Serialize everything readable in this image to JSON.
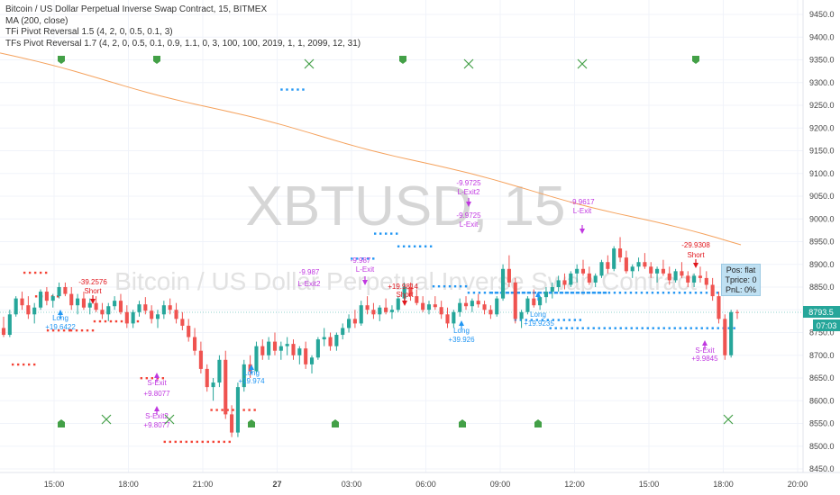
{
  "legend": {
    "title": "Bitcoin / US Dollar Perpetual Inverse Swap Contract, 15, BITMEX",
    "ma": "MA (200, close)",
    "ind1": "TFi Pivot Reversal 1.5 (4, 2, 0, 0.5, 0.1, 3)",
    "ind2": "TFs Pivot Reversal 1.7 (4, 2, 0, 0.5, 0.1, 0.9, 1.1, 0, 3, 100, 100, 2019, 1, 1, 2099, 12, 31)"
  },
  "watermark": {
    "symbol": "XBTUSD, 15",
    "description": "Bitcoin / US Dollar Perpetual Inverse Swap Contract"
  },
  "position_box": {
    "pos": "Pos: flat",
    "tprice": "Tprice: 0",
    "pnl": "PnL: 0%"
  },
  "price_tags": {
    "last": "8793.5",
    "countdown": "07:03"
  },
  "colors": {
    "up": "#26a69a",
    "down": "#ef5350",
    "ma": "#f5a25d",
    "resistance": "#2196f3",
    "support": "#f44336",
    "exit": "#c038e0",
    "short": "#e0151c",
    "long": "#2196f3",
    "bull_marker": "#43a047"
  },
  "chart_data": {
    "type": "candlestick",
    "y_axis": {
      "min": 8450,
      "max": 9450,
      "ticks": [
        "9450.0",
        "9400.0",
        "9350.0",
        "9300.0",
        "9250.0",
        "9200.0",
        "9150.0",
        "9100.0",
        "9050.0",
        "9000.0",
        "8950.0",
        "8900.0",
        "8850.0",
        "8800.0",
        "8750.0",
        "8700.0",
        "8650.0",
        "8600.0",
        "8550.0",
        "8500.0",
        "8450.0"
      ]
    },
    "x_axis": {
      "ticks": [
        "15:00",
        "18:00",
        "21:00",
        "27",
        "03:00",
        "06:00",
        "09:00",
        "12:00",
        "15:00",
        "18:00",
        "20:00"
      ]
    },
    "ma": {
      "start": 9365,
      "end": 8943
    },
    "candles": [
      [
        8760,
        8785,
        8740,
        8745
      ],
      [
        8745,
        8800,
        8740,
        8790
      ],
      [
        8790,
        8830,
        8785,
        8825
      ],
      [
        8825,
        8840,
        8800,
        8810
      ],
      [
        8810,
        8830,
        8780,
        8790
      ],
      [
        8790,
        8815,
        8770,
        8805
      ],
      [
        8805,
        8845,
        8800,
        8840
      ],
      [
        8840,
        8850,
        8810,
        8820
      ],
      [
        8820,
        8835,
        8805,
        8830
      ],
      [
        8830,
        8860,
        8825,
        8850
      ],
      [
        8850,
        8860,
        8830,
        8835
      ],
      [
        8835,
        8850,
        8800,
        8810
      ],
      [
        8810,
        8835,
        8790,
        8825
      ],
      [
        8825,
        8840,
        8800,
        8805
      ],
      [
        8805,
        8825,
        8790,
        8815
      ],
      [
        8815,
        8830,
        8795,
        8800
      ],
      [
        8800,
        8815,
        8780,
        8790
      ],
      [
        8790,
        8815,
        8775,
        8808
      ],
      [
        8808,
        8830,
        8800,
        8820
      ],
      [
        8820,
        8835,
        8790,
        8795
      ],
      [
        8795,
        8810,
        8760,
        8770
      ],
      [
        8770,
        8800,
        8760,
        8795
      ],
      [
        8795,
        8820,
        8785,
        8812
      ],
      [
        8812,
        8828,
        8790,
        8798
      ],
      [
        8798,
        8810,
        8770,
        8780
      ],
      [
        8780,
        8800,
        8760,
        8790
      ],
      [
        8790,
        8820,
        8780,
        8810
      ],
      [
        8810,
        8825,
        8790,
        8800
      ],
      [
        8800,
        8815,
        8770,
        8780
      ],
      [
        8780,
        8795,
        8755,
        8765
      ],
      [
        8765,
        8780,
        8730,
        8740
      ],
      [
        8740,
        8760,
        8700,
        8710
      ],
      [
        8710,
        8730,
        8660,
        8670
      ],
      [
        8670,
        8680,
        8620,
        8630
      ],
      [
        8630,
        8650,
        8600,
        8640
      ],
      [
        8640,
        8700,
        8630,
        8690
      ],
      [
        8690,
        8710,
        8560,
        8570
      ],
      [
        8570,
        8590,
        8520,
        8530
      ],
      [
        8530,
        8640,
        8520,
        8630
      ],
      [
        8630,
        8690,
        8620,
        8680
      ],
      [
        8680,
        8700,
        8650,
        8665
      ],
      [
        8665,
        8730,
        8660,
        8720
      ],
      [
        8720,
        8735,
        8690,
        8700
      ],
      [
        8700,
        8740,
        8690,
        8730
      ],
      [
        8730,
        8750,
        8700,
        8710
      ],
      [
        8710,
        8730,
        8690,
        8720
      ],
      [
        8720,
        8740,
        8700,
        8725
      ],
      [
        8725,
        8735,
        8690,
        8700
      ],
      [
        8700,
        8720,
        8680,
        8715
      ],
      [
        8715,
        8730,
        8670,
        8680
      ],
      [
        8680,
        8700,
        8660,
        8695
      ],
      [
        8695,
        8740,
        8690,
        8735
      ],
      [
        8735,
        8760,
        8720,
        8740
      ],
      [
        8740,
        8750,
        8710,
        8720
      ],
      [
        8720,
        8750,
        8710,
        8745
      ],
      [
        8745,
        8770,
        8735,
        8760
      ],
      [
        8760,
        8790,
        8750,
        8780
      ],
      [
        8780,
        8800,
        8760,
        8770
      ],
      [
        8770,
        8820,
        8765,
        8810
      ],
      [
        8810,
        8830,
        8790,
        8800
      ],
      [
        8800,
        8815,
        8780,
        8790
      ],
      [
        8790,
        8810,
        8775,
        8805
      ],
      [
        8805,
        8825,
        8790,
        8795
      ],
      [
        8795,
        8810,
        8780,
        8800
      ],
      [
        8800,
        8830,
        8795,
        8825
      ],
      [
        8825,
        8860,
        8820,
        8850
      ],
      [
        8850,
        8860,
        8820,
        8830
      ],
      [
        8830,
        8845,
        8810,
        8815
      ],
      [
        8815,
        8830,
        8795,
        8800
      ],
      [
        8800,
        8820,
        8790,
        8812
      ],
      [
        8812,
        8830,
        8800,
        8806
      ],
      [
        8806,
        8820,
        8780,
        8790
      ],
      [
        8790,
        8805,
        8760,
        8770
      ],
      [
        8770,
        8800,
        8760,
        8795
      ],
      [
        8795,
        8825,
        8785,
        8815
      ],
      [
        8815,
        8830,
        8800,
        8808
      ],
      [
        8808,
        8825,
        8795,
        8820
      ],
      [
        8820,
        8835,
        8805,
        8812
      ],
      [
        8812,
        8820,
        8790,
        8800
      ],
      [
        8800,
        8810,
        8780,
        8790
      ],
      [
        8790,
        8830,
        8785,
        8825
      ],
      [
        8825,
        8900,
        8820,
        8890
      ],
      [
        8890,
        8920,
        8850,
        8860
      ],
      [
        8860,
        8870,
        8770,
        8780
      ],
      [
        8780,
        8800,
        8760,
        8795
      ],
      [
        8795,
        8830,
        8790,
        8825
      ],
      [
        8825,
        8845,
        8805,
        8810
      ],
      [
        8810,
        8830,
        8800,
        8828
      ],
      [
        8828,
        8850,
        8815,
        8840
      ],
      [
        8840,
        8860,
        8825,
        8850
      ],
      [
        8850,
        8875,
        8840,
        8865
      ],
      [
        8865,
        8880,
        8845,
        8855
      ],
      [
        8855,
        8885,
        8850,
        8880
      ],
      [
        8880,
        8900,
        8860,
        8890
      ],
      [
        8890,
        8910,
        8875,
        8880
      ],
      [
        8880,
        8895,
        8855,
        8860
      ],
      [
        8860,
        8880,
        8850,
        8875
      ],
      [
        8875,
        8910,
        8870,
        8905
      ],
      [
        8905,
        8920,
        8880,
        8890
      ],
      [
        8890,
        8940,
        8885,
        8935
      ],
      [
        8935,
        8960,
        8905,
        8915
      ],
      [
        8915,
        8930,
        8880,
        8885
      ],
      [
        8885,
        8900,
        8870,
        8895
      ],
      [
        8895,
        8915,
        8885,
        8905
      ],
      [
        8905,
        8925,
        8890,
        8895
      ],
      [
        8895,
        8905,
        8870,
        8880
      ],
      [
        8880,
        8895,
        8860,
        8890
      ],
      [
        8890,
        8910,
        8875,
        8880
      ],
      [
        8880,
        8895,
        8855,
        8865
      ],
      [
        8865,
        8890,
        8860,
        8885
      ],
      [
        8885,
        8905,
        8870,
        8875
      ],
      [
        8875,
        8885,
        8850,
        8860
      ],
      [
        8860,
        8880,
        8850,
        8875
      ],
      [
        8875,
        8895,
        8860,
        8870
      ],
      [
        8870,
        8885,
        8845,
        8855
      ],
      [
        8855,
        8870,
        8820,
        8830
      ],
      [
        8830,
        8840,
        8770,
        8780
      ],
      [
        8780,
        8790,
        8690,
        8700
      ],
      [
        8700,
        8800,
        8695,
        8795
      ],
      [
        8795,
        8800,
        8780,
        8793
      ]
    ],
    "levels": {
      "resistance": [
        {
          "from": 8730,
          "to": 8840,
          "y": 8838
        },
        {
          "from": 8740,
          "to": 8790,
          "y": 8838
        },
        {
          "from": 8765,
          "to": 8845,
          "y": 8760
        },
        {
          "from": 8750,
          "to": 8780,
          "y": 8778
        },
        {
          "from": 8715,
          "to": 8730,
          "y": 8852
        },
        {
          "from": 8700,
          "to": 8715,
          "y": 8940
        },
        {
          "from": 8690,
          "to": 8700,
          "y": 8968
        },
        {
          "from": 8680,
          "to": 8690,
          "y": 8913
        },
        {
          "from": 8650,
          "to": 8660,
          "y": 9285
        }
      ],
      "support": [
        {
          "from": 8620,
          "to": 8640,
          "y": 8580
        },
        {
          "from": 8600,
          "to": 8630,
          "y": 8510
        },
        {
          "from": 8590,
          "to": 8600,
          "y": 8650
        },
        {
          "from": 8570,
          "to": 8590,
          "y": 8775
        },
        {
          "from": 8560,
          "to": 8570,
          "y": 8755
        },
        {
          "from": 8550,
          "to": 8560,
          "y": 8755
        },
        {
          "from": 8545,
          "to": 8555,
          "y": 8830
        },
        {
          "from": 8540,
          "to": 8550,
          "y": 8882
        },
        {
          "from": 8535,
          "to": 8545,
          "y": 8680
        }
      ]
    },
    "signals": {
      "labels": [
        {
          "text": "-39.2576",
          "color": "short"
        },
        {
          "text": "Short",
          "color": "short"
        },
        {
          "text": "Long",
          "color": "long"
        },
        {
          "text": "+19.6422",
          "color": "long"
        },
        {
          "text": "S-Exit",
          "color": "exit"
        },
        {
          "text": "+9.8077",
          "color": "exit"
        },
        {
          "text": "S-Exit2",
          "color": "exit"
        },
        {
          "text": "+9.8077",
          "color": "exit"
        },
        {
          "text": "Long",
          "color": "long"
        },
        {
          "text": "+19.974",
          "color": "long"
        },
        {
          "text": "-9.987",
          "color": "exit"
        },
        {
          "text": "L-Exit",
          "color": "exit"
        },
        {
          "text": "-9.987",
          "color": "exit"
        },
        {
          "text": "L-Exit2",
          "color": "exit"
        },
        {
          "text": "+19.9814",
          "color": "short"
        },
        {
          "text": "Short",
          "color": "short"
        },
        {
          "text": "-9.9725",
          "color": "exit"
        },
        {
          "text": "L-Exit2",
          "color": "exit"
        },
        {
          "text": "-9.9725",
          "color": "exit"
        },
        {
          "text": "L-Exit",
          "color": "exit"
        },
        {
          "text": "Long",
          "color": "long"
        },
        {
          "text": "+39.926",
          "color": "long"
        },
        {
          "text": "Long",
          "color": "long"
        },
        {
          "text": "+19.9235",
          "color": "long"
        },
        {
          "text": "-9.9617",
          "color": "exit"
        },
        {
          "text": "L-Exit",
          "color": "exit"
        },
        {
          "text": "-29.9308",
          "color": "short"
        },
        {
          "text": "Short",
          "color": "short"
        },
        {
          "text": "S-Exit",
          "color": "exit"
        },
        {
          "text": "+9.9845",
          "color": "exit"
        }
      ],
      "top_markers": [
        "bull",
        "bull",
        "cross",
        "bull",
        "cross",
        "cross",
        "bull"
      ],
      "bottom_markers": [
        "bull",
        "cross",
        "cross",
        "bull",
        "bull",
        "bull",
        "bull",
        "cross"
      ]
    }
  }
}
